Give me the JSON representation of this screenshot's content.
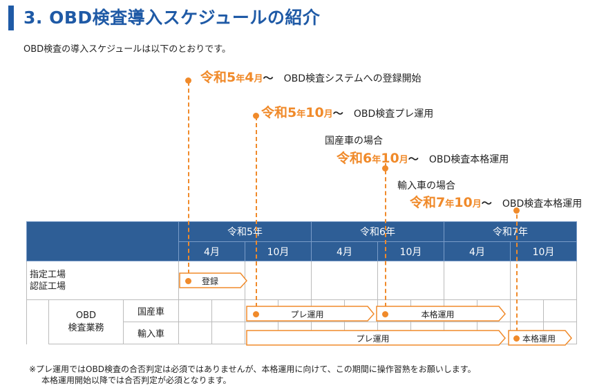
{
  "title": "3. OBD検査導入スケジュールの紹介",
  "intro": "OBD検査の導入スケジュールは以下のとおりです。",
  "milestones": [
    {
      "era": "令和",
      "y": "5",
      "nen": "年",
      "m": "4",
      "tsuki": "月",
      "tilde": "〜",
      "label": "OBD検査システムへの登録開始"
    },
    {
      "era": "令和",
      "y": "5",
      "nen": "年",
      "m": "10",
      "tsuki": "月",
      "tilde": "〜",
      "label": "OBD検査プレ運用"
    },
    {
      "pre": "国産車の場合",
      "era": "令和",
      "y": "6",
      "nen": "年",
      "m": "10",
      "tsuki": "月",
      "tilde": "〜",
      "label": "OBD検査本格運用"
    },
    {
      "pre": "輸入車の場合",
      "era": "令和",
      "y": "7",
      "nen": "年",
      "m": "10",
      "tsuki": "月",
      "tilde": "〜",
      "label": "OBD検査本格運用"
    }
  ],
  "table": {
    "years": [
      "令和5年",
      "令和6年",
      "令和7年"
    ],
    "months": [
      "4月",
      "10月",
      "4月",
      "10月",
      "4月",
      "10月"
    ],
    "row1_label_a": "指定工場",
    "row1_label_b": "認証工場",
    "group_label_a": "OBD",
    "group_label_b": "検査業務",
    "sub1": "国産車",
    "sub2": "輸入車"
  },
  "bars": {
    "register": "登録",
    "pre1": "プレ運用",
    "full1": "本格運用",
    "pre2": "プレ運用",
    "full2": "本格運用"
  },
  "note_line1": "※プレ運用ではOBD検査の合否判定は必須ではありませんが、本格運用に向けて、この期間に操作習熟をお願いします。",
  "note_line2": "本格運用開始以降では合否判定が必須となります。",
  "colors": {
    "accent": "#f08a2a",
    "header": "#2e5e96",
    "title": "#1f5aa6"
  }
}
